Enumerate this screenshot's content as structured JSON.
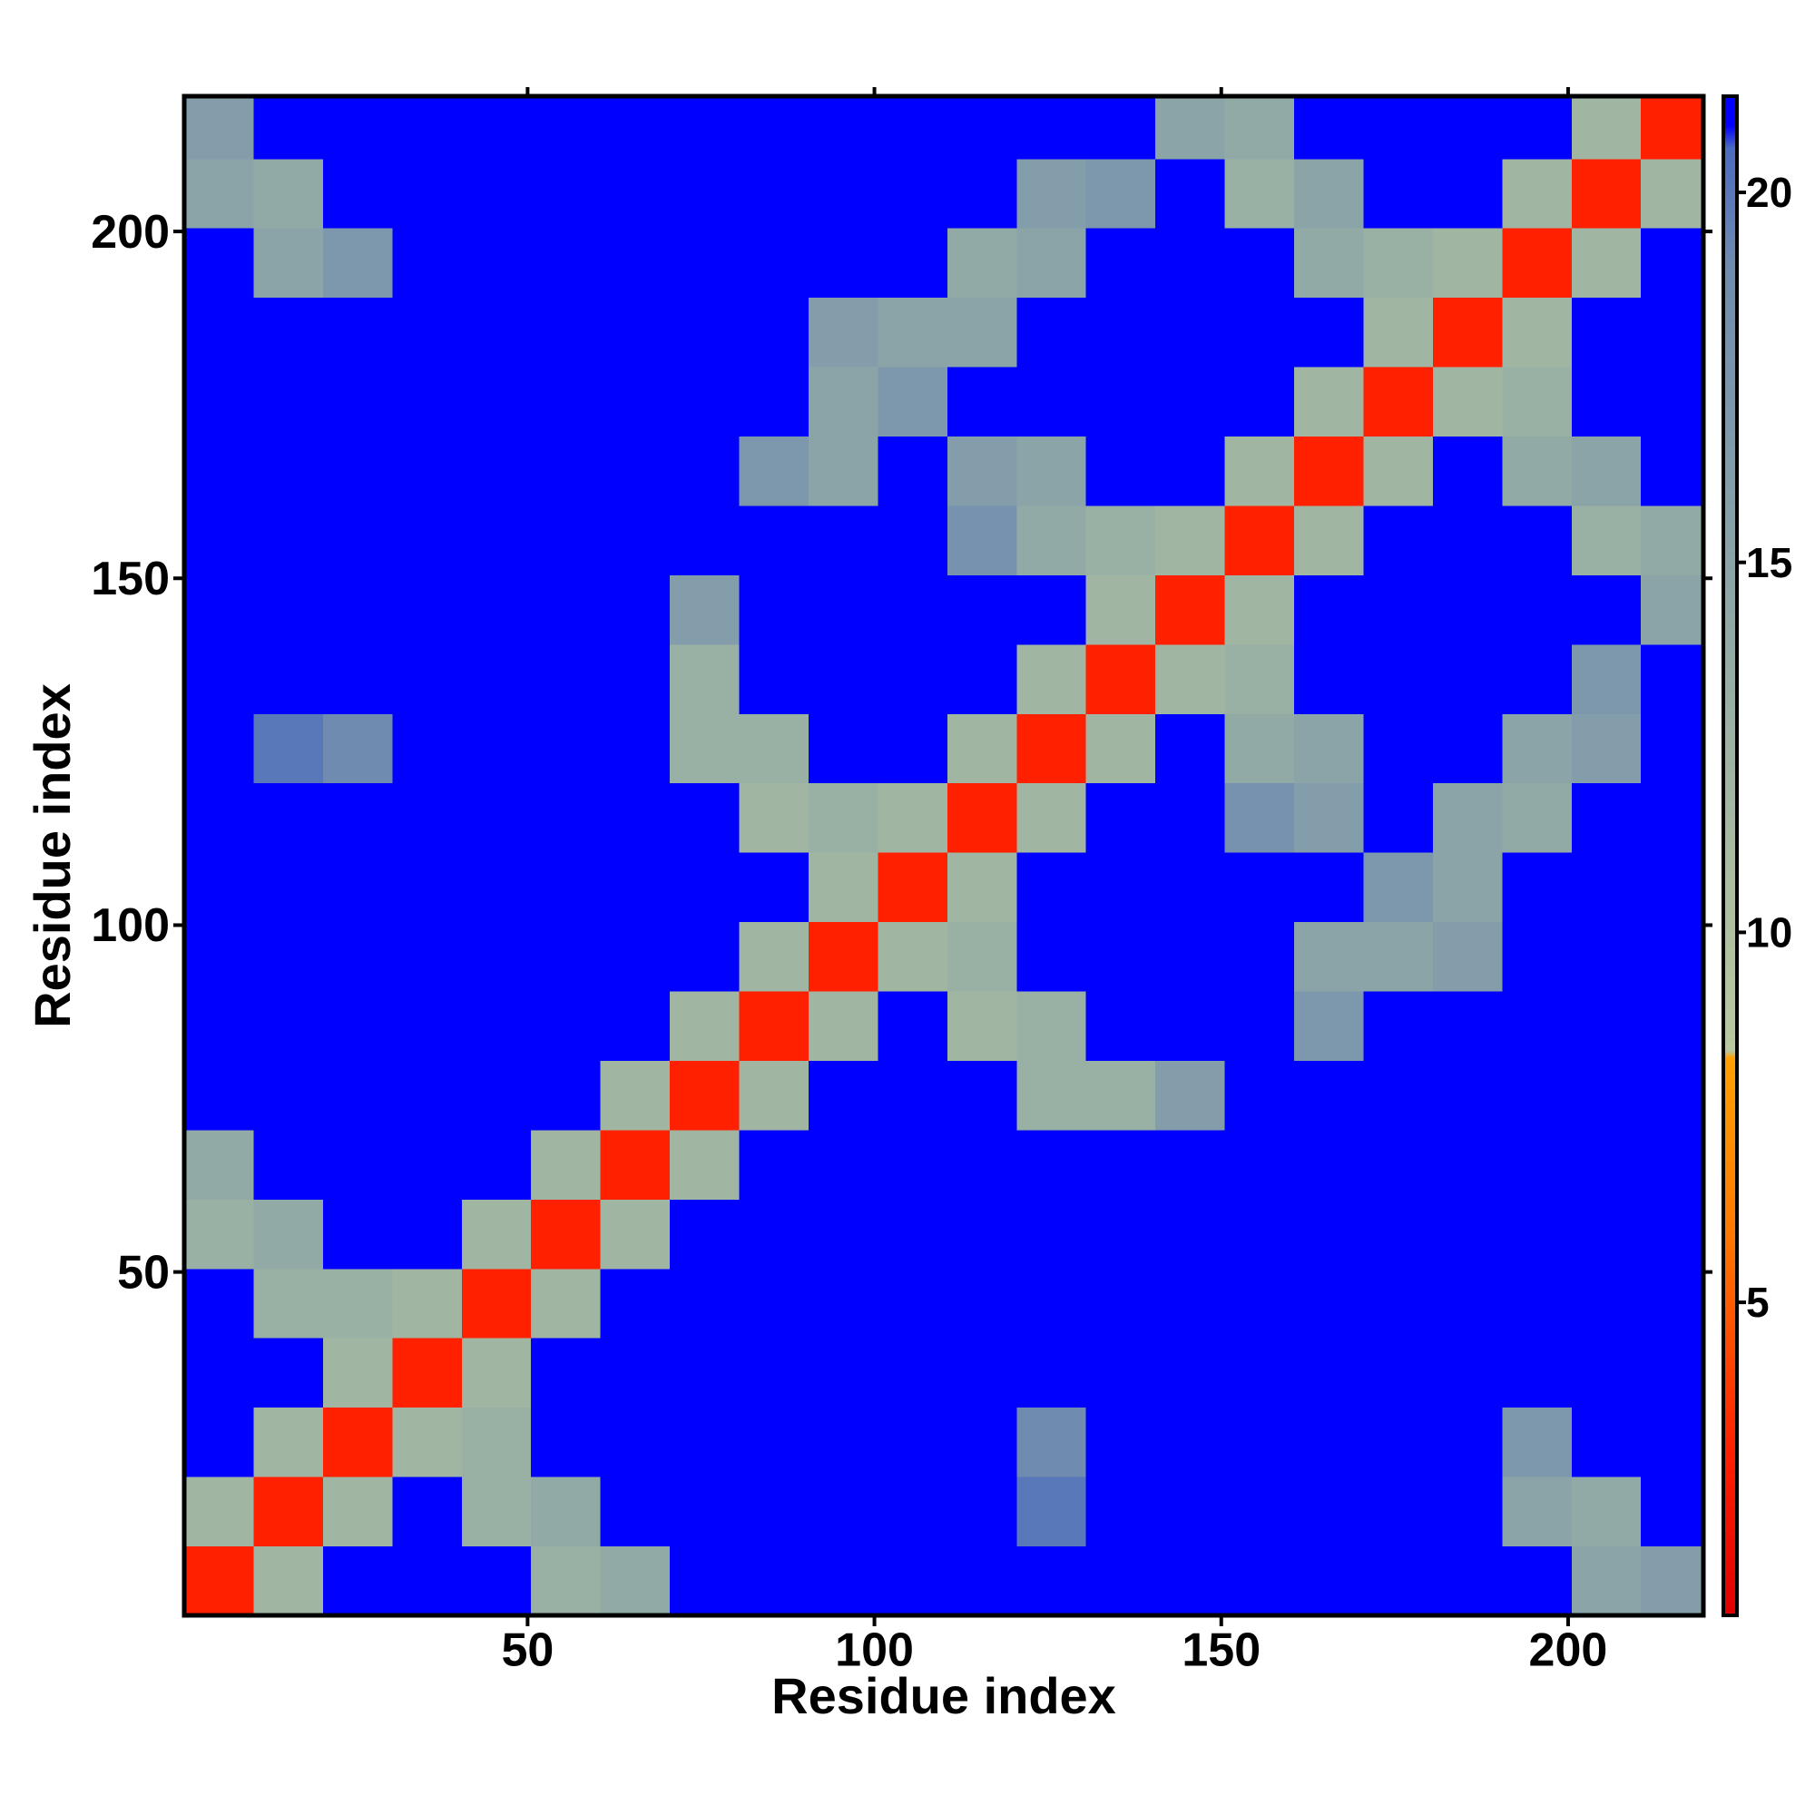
{
  "chart_data": {
    "type": "heatmap",
    "x_label": "Residue index",
    "y_label": "Residue index",
    "x_bins": [
      0.5,
      10.5,
      20.5,
      30.5,
      40.5,
      50.5,
      60.5,
      70.5,
      80.5,
      90.5,
      100.5,
      110.5,
      120.5,
      130.5,
      140.5,
      150.5,
      160.5,
      170.5,
      180.5,
      190.5,
      200.5,
      210.5,
      219.5
    ],
    "y_bins": [
      0.5,
      10.5,
      20.5,
      30.5,
      40.5,
      50.5,
      60.5,
      70.5,
      80.5,
      90.5,
      100.5,
      110.5,
      120.5,
      130.5,
      140.5,
      150.5,
      160.5,
      170.5,
      180.5,
      190.5,
      200.5,
      210.5,
      219.5
    ],
    "xlim": [
      0.5,
      219.5
    ],
    "ylim": [
      0.5,
      219.5
    ],
    "xticks": [
      50,
      100,
      150,
      200
    ],
    "yticks": [
      50,
      100,
      150,
      200
    ],
    "zlim": [
      0.77,
      21.3
    ],
    "zticks": [
      5,
      10,
      15,
      20
    ],
    "colorscale": [
      [
        0.77,
        "#e00000"
      ],
      [
        3,
        "#ff2000"
      ],
      [
        6,
        "#ff7a00"
      ],
      [
        8.3,
        "#ffa000"
      ],
      [
        8.4,
        "#b8c8a0"
      ],
      [
        11,
        "#a8bca0"
      ],
      [
        15,
        "#8aa4a8"
      ],
      [
        19,
        "#6f8cb0"
      ],
      [
        20.6,
        "#4a6cc0"
      ],
      [
        20.9,
        "#0000ff"
      ],
      [
        21.3,
        "#0000ff"
      ]
    ],
    "z": [
      [
        3,
        12,
        21,
        21,
        21,
        13,
        14,
        21,
        21,
        21,
        21,
        21,
        21,
        21,
        21,
        21,
        21,
        21,
        21,
        21,
        15,
        16
      ],
      [
        12,
        3,
        12,
        21,
        13,
        14,
        21,
        21,
        21,
        21,
        21,
        21,
        20,
        21,
        21,
        21,
        21,
        21,
        21,
        15,
        14,
        21
      ],
      [
        21,
        12,
        3,
        12,
        13,
        21,
        21,
        21,
        21,
        21,
        21,
        21,
        19,
        21,
        21,
        21,
        21,
        21,
        21,
        17,
        21,
        21
      ],
      [
        21,
        21,
        12,
        3,
        12,
        21,
        21,
        21,
        21,
        21,
        21,
        21,
        21,
        21,
        21,
        21,
        21,
        21,
        21,
        21,
        21,
        21
      ],
      [
        21,
        13,
        13,
        12,
        3,
        12,
        21,
        21,
        21,
        21,
        21,
        21,
        21,
        21,
        21,
        21,
        21,
        21,
        21,
        21,
        21,
        21
      ],
      [
        13,
        14,
        21,
        21,
        12,
        3,
        12,
        21,
        21,
        21,
        21,
        21,
        21,
        21,
        21,
        21,
        21,
        21,
        21,
        21,
        21,
        21
      ],
      [
        14,
        21,
        21,
        21,
        21,
        12,
        3,
        12,
        21,
        21,
        21,
        21,
        21,
        21,
        21,
        21,
        21,
        21,
        21,
        21,
        21,
        21
      ],
      [
        21,
        21,
        21,
        21,
        21,
        21,
        12,
        3,
        12,
        21,
        21,
        21,
        13,
        13,
        16,
        21,
        21,
        21,
        21,
        21,
        21,
        21
      ],
      [
        21,
        21,
        21,
        21,
        21,
        21,
        21,
        12,
        3,
        12,
        21,
        12,
        13,
        21,
        21,
        21,
        17,
        21,
        21,
        21,
        21,
        21
      ],
      [
        21,
        21,
        21,
        21,
        21,
        21,
        21,
        21,
        12,
        3,
        12,
        13,
        21,
        21,
        21,
        21,
        15,
        15,
        16,
        21,
        21,
        21
      ],
      [
        21,
        21,
        21,
        21,
        21,
        21,
        21,
        21,
        21,
        12,
        3,
        12,
        21,
        21,
        21,
        21,
        21,
        17,
        15,
        21,
        21,
        21
      ],
      [
        21,
        21,
        21,
        21,
        21,
        21,
        21,
        21,
        12,
        13,
        12,
        3,
        12,
        21,
        21,
        18,
        16,
        21,
        15,
        14,
        21,
        21
      ],
      [
        21,
        20,
        19,
        21,
        21,
        21,
        21,
        13,
        13,
        21,
        21,
        12,
        3,
        12,
        21,
        14,
        15,
        21,
        21,
        15,
        16,
        21
      ],
      [
        21,
        21,
        21,
        21,
        21,
        21,
        21,
        13,
        21,
        21,
        21,
        21,
        12,
        3,
        12,
        13,
        21,
        21,
        21,
        21,
        17,
        21
      ],
      [
        21,
        21,
        21,
        21,
        21,
        21,
        21,
        16,
        21,
        21,
        21,
        21,
        21,
        12,
        3,
        12,
        21,
        21,
        21,
        21,
        21,
        15
      ],
      [
        21,
        21,
        21,
        21,
        21,
        21,
        21,
        21,
        21,
        21,
        21,
        18,
        14,
        13,
        12,
        3,
        12,
        21,
        21,
        21,
        13,
        14
      ],
      [
        21,
        21,
        21,
        21,
        21,
        21,
        21,
        21,
        17,
        15,
        21,
        16,
        15,
        21,
        21,
        12,
        3,
        12,
        21,
        14,
        15,
        21
      ],
      [
        21,
        21,
        21,
        21,
        21,
        21,
        21,
        21,
        21,
        15,
        17,
        21,
        21,
        21,
        21,
        21,
        12,
        3,
        12,
        13,
        21,
        21
      ],
      [
        21,
        21,
        21,
        21,
        21,
        21,
        21,
        21,
        21,
        16,
        15,
        15,
        21,
        21,
        21,
        21,
        21,
        12,
        3,
        12,
        21,
        21
      ],
      [
        21,
        15,
        17,
        21,
        21,
        21,
        21,
        21,
        21,
        21,
        21,
        14,
        15,
        21,
        21,
        21,
        14,
        13,
        12,
        3,
        12,
        21
      ],
      [
        15,
        14,
        21,
        21,
        21,
        21,
        21,
        21,
        21,
        21,
        21,
        21,
        16,
        17,
        21,
        13,
        15,
        21,
        21,
        12,
        3,
        12
      ],
      [
        16,
        21,
        21,
        21,
        21,
        21,
        21,
        21,
        21,
        21,
        21,
        21,
        21,
        21,
        15,
        14,
        21,
        21,
        21,
        21,
        12,
        3
      ]
    ]
  }
}
